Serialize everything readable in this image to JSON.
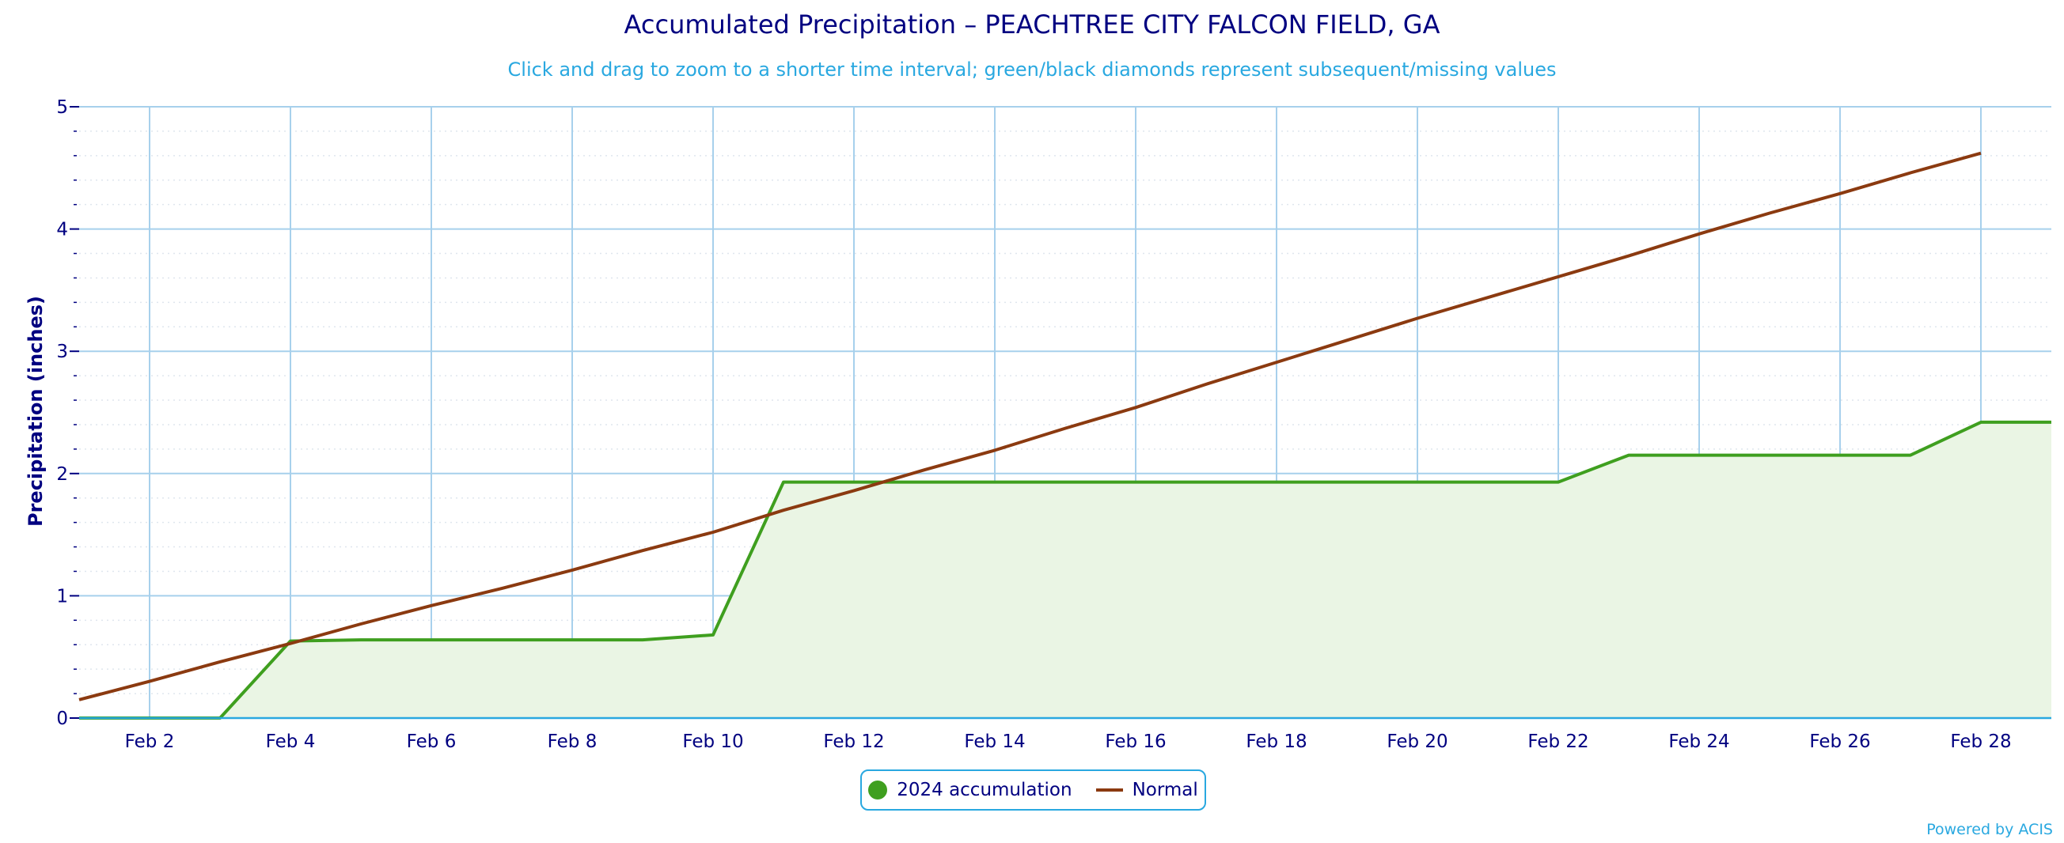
{
  "chart_data": {
    "type": "area",
    "title": "Accumulated Precipitation – PEACHTREE CITY FALCON FIELD, GA",
    "subtitle": "Click and drag to zoom to a shorter time interval; green/black diamonds represent subsequent/missing values",
    "ylabel": "Precipitation (inches)",
    "xlabel": "",
    "ylim": [
      0,
      5
    ],
    "yticks": [
      "0",
      "1",
      "2",
      "3",
      "4",
      "5"
    ],
    "xlim": [
      1,
      29
    ],
    "xticks": [
      {
        "day": 2,
        "label": "Feb 2"
      },
      {
        "day": 4,
        "label": "Feb 4"
      },
      {
        "day": 6,
        "label": "Feb 6"
      },
      {
        "day": 8,
        "label": "Feb 8"
      },
      {
        "day": 10,
        "label": "Feb 10"
      },
      {
        "day": 12,
        "label": "Feb 12"
      },
      {
        "day": 14,
        "label": "Feb 14"
      },
      {
        "day": 16,
        "label": "Feb 16"
      },
      {
        "day": 18,
        "label": "Feb 18"
      },
      {
        "day": 20,
        "label": "Feb 20"
      },
      {
        "day": 22,
        "label": "Feb 22"
      },
      {
        "day": 24,
        "label": "Feb 24"
      },
      {
        "day": 26,
        "label": "Feb 26"
      },
      {
        "day": 28,
        "label": "Feb 28"
      }
    ],
    "grid": true,
    "legend_position": "bottom-center",
    "series": [
      {
        "name": "2024 accumulation",
        "color": "#3f9f1f",
        "fill": "#eaf5e4",
        "x": [
          1,
          2,
          3,
          4,
          5,
          6,
          7,
          8,
          9,
          10,
          11,
          12,
          13,
          14,
          15,
          16,
          17,
          18,
          19,
          20,
          21,
          22,
          23,
          24,
          25,
          26,
          27,
          28,
          29
        ],
        "values": [
          0,
          0,
          0,
          0.63,
          0.64,
          0.64,
          0.64,
          0.64,
          0.64,
          0.68,
          1.93,
          1.93,
          1.93,
          1.93,
          1.93,
          1.93,
          1.93,
          1.93,
          1.93,
          1.93,
          1.93,
          1.93,
          2.15,
          2.15,
          2.15,
          2.15,
          2.15,
          2.42,
          2.42
        ]
      },
      {
        "name": "Normal",
        "color": "#8b3a10",
        "x": [
          1,
          2,
          3,
          4,
          5,
          6,
          7,
          8,
          9,
          10,
          11,
          12,
          13,
          14,
          15,
          16,
          17,
          18,
          19,
          20,
          21,
          22,
          23,
          24,
          25,
          26,
          27,
          28
        ],
        "values": [
          0.15,
          0.3,
          0.46,
          0.61,
          0.77,
          0.92,
          1.06,
          1.21,
          1.37,
          1.52,
          1.7,
          1.86,
          2.03,
          2.19,
          2.37,
          2.54,
          2.73,
          2.91,
          3.09,
          3.27,
          3.44,
          3.61,
          3.78,
          3.96,
          4.13,
          4.29,
          4.46,
          4.62
        ]
      }
    ]
  },
  "credit": "Powered by ACIS"
}
